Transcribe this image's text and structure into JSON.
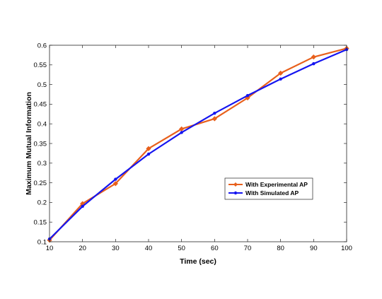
{
  "chart_data": {
    "type": "line",
    "title": "",
    "xlabel": "Time (sec)",
    "ylabel": "Maximum Mutual Information",
    "xlim": [
      10,
      100
    ],
    "ylim": [
      0.1,
      0.6
    ],
    "xticks": [
      10,
      20,
      30,
      40,
      50,
      60,
      70,
      80,
      90,
      100
    ],
    "yticks": [
      0.1,
      0.15,
      0.2,
      0.25,
      0.3,
      0.35,
      0.4,
      0.45,
      0.5,
      0.55,
      0.6
    ],
    "ytick_labels": [
      "0.1",
      "0.15",
      "0.2",
      "0.25",
      "0.3",
      "0.35",
      "0.4",
      "0.45",
      "0.5",
      "0.55",
      "0.6"
    ],
    "grid": false,
    "legend_position": "center-right",
    "x": [
      10,
      20,
      30,
      40,
      50,
      60,
      70,
      80,
      90,
      100
    ],
    "series": [
      {
        "name": "With Experimental AP",
        "color": "#E8601C",
        "marker": "diamond",
        "values": [
          0.104,
          0.197,
          0.248,
          0.337,
          0.387,
          0.413,
          0.466,
          0.529,
          0.57,
          0.592
        ]
      },
      {
        "name": "With Simulated AP",
        "color": "#1515F0",
        "marker": "dot",
        "values": [
          0.107,
          0.19,
          0.259,
          0.323,
          0.378,
          0.427,
          0.472,
          0.514,
          0.553,
          0.589
        ]
      }
    ]
  }
}
